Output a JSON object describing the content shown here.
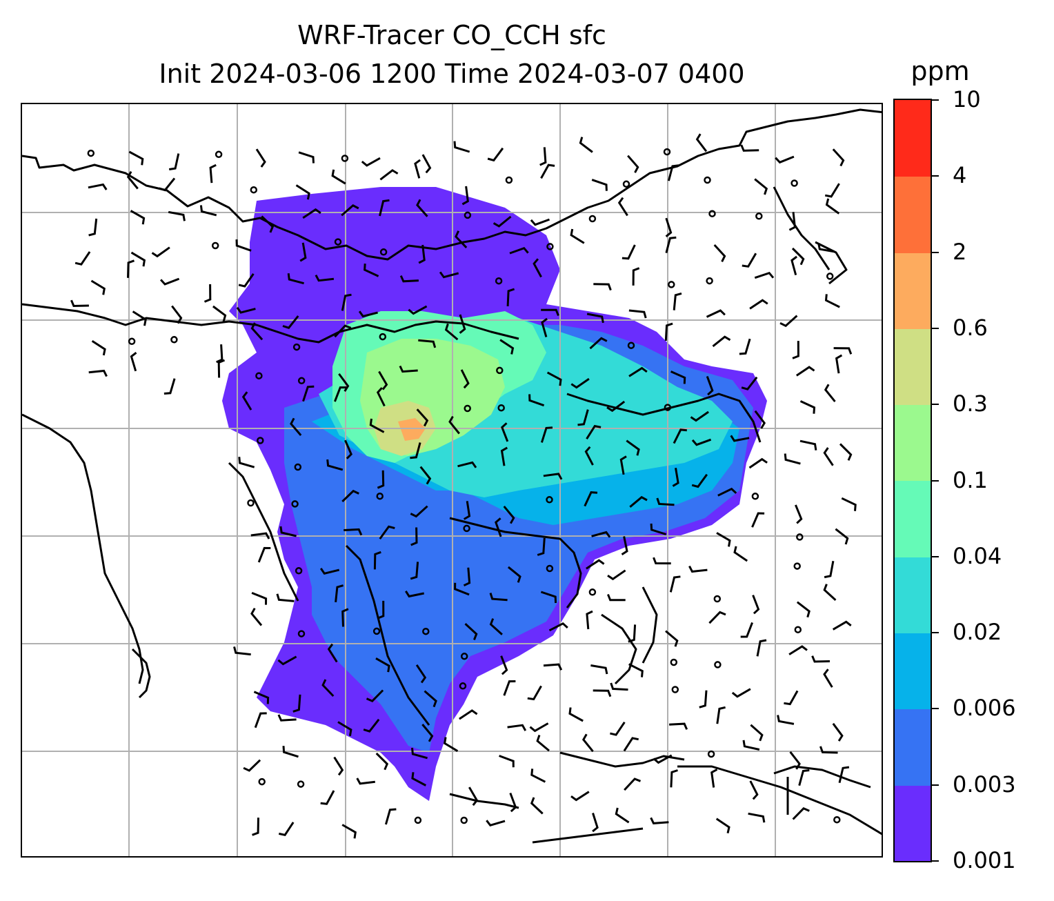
{
  "title": {
    "line1": "WRF-Tracer CO_CCH sfc",
    "line2": "Init 2024-03-06 1200 Time 2024-03-07 0400"
  },
  "colorbar": {
    "unit": "ppm",
    "levels": [
      "0.001",
      "0.003",
      "0.006",
      "0.02",
      "0.04",
      "0.1",
      "0.3",
      "0.6",
      "2",
      "4",
      "10"
    ],
    "colors": [
      "#6a2dfd",
      "#3673f3",
      "#06b2ea",
      "#33dbd7",
      "#65fab7",
      "#9bf98e",
      "#cfdf84",
      "#fdab5e",
      "#fe7039",
      "#ff2a1a"
    ]
  },
  "map": {
    "projection_gridlines": true,
    "coastline_color": "#000000",
    "gridline_color": "#b0b0b0",
    "wind_barbs_color": "#000000",
    "calm_marker": "open-circle"
  }
}
